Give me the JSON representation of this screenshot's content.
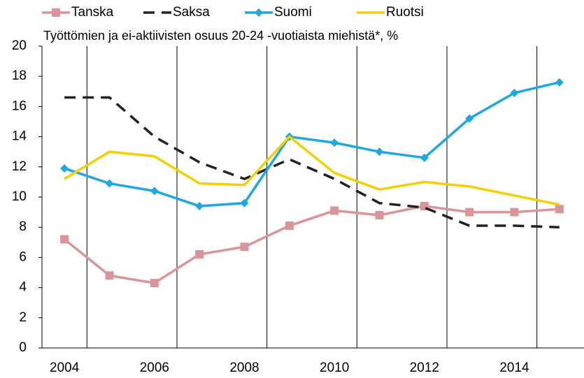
{
  "chart_data": {
    "type": "line",
    "title": "Työttömien ja ei-aktiivisten osuus 20-24 -vuotiaista miehistä*, %",
    "categories": [
      "2004",
      null,
      "2006",
      null,
      "2008",
      null,
      "2010",
      null,
      "2012",
      null,
      "2014",
      null
    ],
    "series": [
      {
        "name": "Tanska",
        "color": "#d9959a",
        "marker": "square",
        "dash": false,
        "values": [
          7.2,
          4.8,
          4.3,
          6.2,
          6.7,
          8.1,
          9.1,
          8.8,
          9.4,
          9.0,
          9.0,
          9.2
        ]
      },
      {
        "name": "Saksa",
        "color": "#222222",
        "marker": null,
        "dash": true,
        "values": [
          16.6,
          16.6,
          14.0,
          12.3,
          11.2,
          12.5,
          11.2,
          9.6,
          9.3,
          8.1,
          8.1,
          8.0
        ]
      },
      {
        "name": "Suomi",
        "color": "#1ea8e0",
        "marker": "diamond",
        "dash": false,
        "values": [
          11.9,
          10.9,
          10.4,
          9.4,
          9.6,
          14.0,
          13.6,
          13.0,
          12.6,
          15.2,
          16.9,
          17.6
        ]
      },
      {
        "name": "Ruotsi",
        "color": "#f5d000",
        "marker": null,
        "dash": false,
        "values": [
          11.2,
          13.0,
          12.7,
          10.9,
          10.8,
          14.0,
          11.6,
          10.5,
          11.0,
          10.7,
          10.1,
          9.5
        ]
      }
    ],
    "ylim": [
      0,
      20
    ],
    "yticks": [
      0,
      2,
      4,
      6,
      8,
      10,
      12,
      14,
      16,
      18,
      20
    ],
    "legend": "top"
  }
}
